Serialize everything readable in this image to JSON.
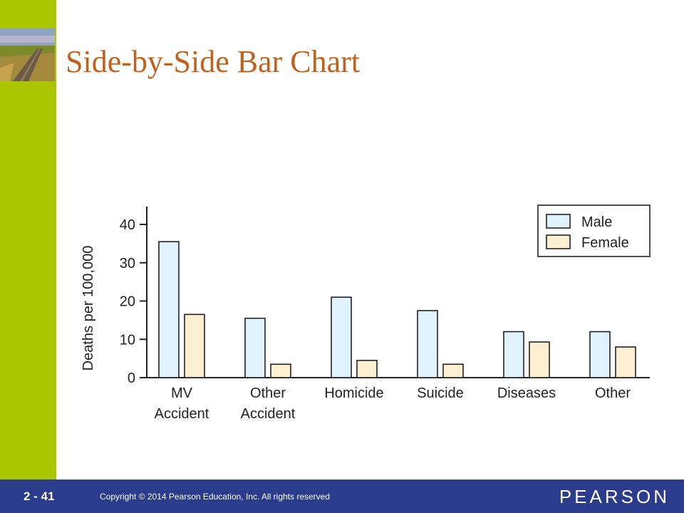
{
  "slide": {
    "title": "Side-by-Side Bar Chart",
    "page_number": "2 -  41",
    "copyright": "Copyright © 2014 Pearson Education, Inc.  All rights reserved",
    "brand": "PEARSON"
  },
  "colors": {
    "sidebar": "#a9c600",
    "footer": "#2b3c8d",
    "title": "#c0621d",
    "male": "#dff2fd",
    "female": "#fdefd2"
  },
  "chart_data": {
    "type": "bar",
    "ylabel": "Deaths per 100,000",
    "xlabel": "",
    "ylim": [
      0,
      45
    ],
    "yticks": [
      0,
      10,
      20,
      30,
      40
    ],
    "grid": false,
    "legend_position": "top-right",
    "categories": [
      [
        "MV",
        "Accident"
      ],
      [
        "Other",
        "Accident"
      ],
      [
        "Homicide"
      ],
      [
        "Suicide"
      ],
      [
        "Diseases"
      ],
      [
        "Other"
      ]
    ],
    "series": [
      {
        "name": "Male",
        "color": "#dff2fd",
        "values": [
          35.5,
          15.5,
          21,
          17.5,
          12,
          12
        ]
      },
      {
        "name": "Female",
        "color": "#fdefd2",
        "values": [
          16.5,
          3.5,
          4.5,
          3.5,
          9.3,
          8
        ]
      }
    ]
  }
}
